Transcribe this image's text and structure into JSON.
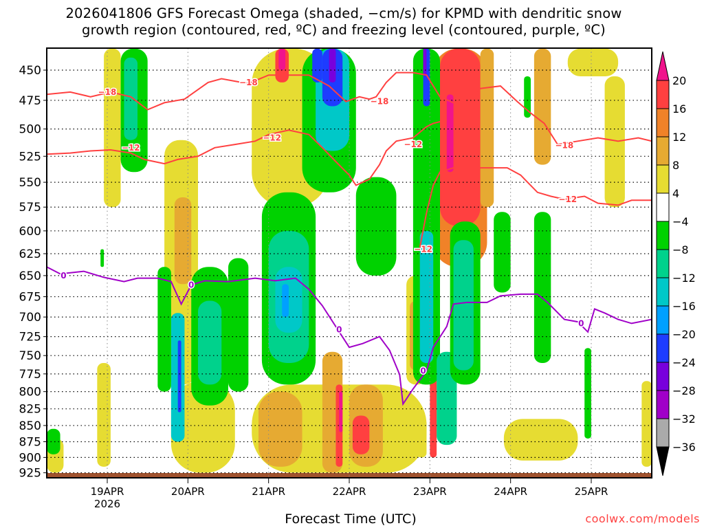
{
  "chart_data": {
    "type": "heatmap",
    "title_lines": [
      "2026041806 GFS Forecast Omega (shaded, −cm/s) for KPMD with dendritic snow",
      "growth region (contoured, red, ºC) and freezing level (contoured, purple, ºC)"
    ],
    "xlabel": "Forecast Time (UTC)",
    "credit": "coolwx.com/models",
    "x_range_hours": [
      0,
      180
    ],
    "y_range_hpa": [
      433,
      933
    ],
    "y_scale": "log-pressure (inverted)",
    "grid": true,
    "y_ticks": [
      450,
      475,
      500,
      525,
      550,
      575,
      600,
      625,
      650,
      675,
      700,
      725,
      750,
      775,
      800,
      825,
      850,
      875,
      900,
      925
    ],
    "x_ticks": [
      {
        "hour": 18,
        "label": "19APR",
        "sub": "2026"
      },
      {
        "hour": 42,
        "label": "20APR"
      },
      {
        "hour": 66,
        "label": "21APR"
      },
      {
        "hour": 90,
        "label": "22APR"
      },
      {
        "hour": 114,
        "label": "23APR"
      },
      {
        "hour": 138,
        "label": "24APR"
      },
      {
        "hour": 162,
        "label": "25APR"
      }
    ],
    "colorbar": {
      "levels": [
        "20",
        "16",
        "12",
        "8",
        "4",
        "−4",
        "−8",
        "−12",
        "−16",
        "−20",
        "−24",
        "−28",
        "−32",
        "−36"
      ],
      "over_color": "#f0148c",
      "under_color": "#000000",
      "bins": [
        {
          "min": 16,
          "max": 20,
          "color": "#ff4040"
        },
        {
          "min": 12,
          "max": 16,
          "color": "#f08228"
        },
        {
          "min": 8,
          "max": 12,
          "color": "#e6aa32"
        },
        {
          "min": 4,
          "max": 8,
          "color": "#e6dc32"
        },
        {
          "min": -4,
          "max": 4,
          "color": "#ffffff"
        },
        {
          "min": -8,
          "max": -4,
          "color": "#00d200"
        },
        {
          "min": -12,
          "max": -8,
          "color": "#00d28c"
        },
        {
          "min": -16,
          "max": -12,
          "color": "#00c8c8"
        },
        {
          "min": -20,
          "max": -16,
          "color": "#00a0ff"
        },
        {
          "min": -24,
          "max": -20,
          "color": "#1e3cff"
        },
        {
          "min": -28,
          "max": -24,
          "color": "#7800dc"
        },
        {
          "min": -32,
          "max": -28,
          "color": "#a000c8"
        },
        {
          "min": -36,
          "max": -32,
          "color": "#aaaaaa"
        }
      ]
    },
    "omega_regions": [
      [
        17,
        22,
        433,
        575,
        6
      ],
      [
        15,
        19,
        760,
        915,
        6
      ],
      [
        35,
        45,
        510,
        790,
        6
      ],
      [
        38,
        43,
        565,
        660,
        10
      ],
      [
        37,
        56,
        785,
        925,
        6
      ],
      [
        61,
        84,
        433,
        575,
        6
      ],
      [
        61,
        113,
        790,
        925,
        6
      ],
      [
        63,
        76,
        800,
        915,
        10
      ],
      [
        82,
        88,
        745,
        925,
        10
      ],
      [
        90,
        100,
        790,
        915,
        10
      ],
      [
        107,
        113,
        650,
        790,
        6
      ],
      [
        108,
        112,
        680,
        770,
        10
      ],
      [
        115,
        131,
        433,
        640,
        14
      ],
      [
        117,
        129,
        433,
        595,
        18
      ],
      [
        129,
        133,
        433,
        575,
        10
      ],
      [
        136,
        158,
        840,
        905,
        6
      ],
      [
        155,
        170,
        433,
        455,
        6
      ],
      [
        166,
        172,
        455,
        575,
        6
      ],
      [
        145,
        150,
        433,
        533,
        10
      ],
      [
        177,
        180,
        785,
        915,
        6
      ],
      [
        110,
        113,
        840,
        900,
        6
      ],
      [
        0,
        5,
        870,
        925,
        6
      ],
      [
        86,
        88,
        790,
        915,
        18
      ],
      [
        91,
        96,
        835,
        895,
        18
      ],
      [
        114,
        116,
        775,
        900,
        18
      ],
      [
        68,
        72,
        433,
        460,
        18
      ],
      [
        87,
        88,
        800,
        860,
        22
      ],
      [
        119,
        121,
        470,
        540,
        22
      ],
      [
        69,
        71,
        433,
        450,
        22
      ],
      [
        22,
        30,
        433,
        540,
        -6
      ],
      [
        23,
        27,
        440,
        510,
        -10
      ],
      [
        0,
        4,
        855,
        895,
        -6
      ],
      [
        16,
        17,
        620,
        640,
        -6
      ],
      [
        33,
        37,
        640,
        800,
        -6
      ],
      [
        37,
        41,
        695,
        875,
        -14
      ],
      [
        39,
        40,
        730,
        830,
        -22
      ],
      [
        43,
        54,
        640,
        820,
        -6
      ],
      [
        45,
        52,
        680,
        790,
        -10
      ],
      [
        54,
        60,
        630,
        800,
        -6
      ],
      [
        64,
        80,
        560,
        790,
        -6
      ],
      [
        66,
        78,
        600,
        760,
        -10
      ],
      [
        68,
        76,
        640,
        720,
        -14
      ],
      [
        70,
        72,
        660,
        700,
        -18
      ],
      [
        76,
        92,
        433,
        560,
        -6
      ],
      [
        80,
        90,
        433,
        520,
        -14
      ],
      [
        82,
        88,
        433,
        480,
        -22
      ],
      [
        84,
        86,
        433,
        460,
        -26
      ],
      [
        92,
        104,
        545,
        650,
        -6
      ],
      [
        79,
        82,
        433,
        460,
        -22
      ],
      [
        109,
        117,
        433,
        790,
        -6
      ],
      [
        111,
        115,
        600,
        760,
        -14
      ],
      [
        112,
        114,
        433,
        480,
        -22
      ],
      [
        112,
        113,
        433,
        455,
        -26
      ],
      [
        116,
        122,
        745,
        880,
        -10
      ],
      [
        120,
        129,
        590,
        790,
        -6
      ],
      [
        121,
        127,
        610,
        770,
        -10
      ],
      [
        133,
        138,
        580,
        670,
        -6
      ],
      [
        142,
        144,
        455,
        490,
        -6
      ],
      [
        145,
        150,
        580,
        760,
        -6
      ],
      [
        160,
        162,
        740,
        870,
        -6
      ]
    ],
    "contours": [
      {
        "name": "freezing-level-0C",
        "color": "#a000c8",
        "level": "0",
        "points": [
          [
            0,
            640
          ],
          [
            4,
            648
          ],
          [
            11,
            645
          ],
          [
            17,
            652
          ],
          [
            23,
            657
          ],
          [
            27,
            653
          ],
          [
            33,
            653
          ],
          [
            37,
            657
          ],
          [
            40,
            684
          ],
          [
            43,
            661
          ],
          [
            47,
            656
          ],
          [
            54,
            657
          ],
          [
            62,
            653
          ],
          [
            68,
            656
          ],
          [
            74,
            653
          ],
          [
            78,
            666
          ],
          [
            82,
            686
          ],
          [
            86,
            712
          ],
          [
            90,
            739
          ],
          [
            94,
            734
          ],
          [
            99,
            725
          ],
          [
            102,
            743
          ],
          [
            105,
            776
          ],
          [
            106,
            818
          ],
          [
            109,
            796
          ],
          [
            113,
            771
          ],
          [
            115,
            739
          ],
          [
            119,
            712
          ],
          [
            121,
            684
          ],
          [
            125,
            682
          ],
          [
            131,
            682
          ],
          [
            135,
            674
          ],
          [
            141,
            672
          ],
          [
            146,
            672
          ],
          [
            149,
            682
          ],
          [
            154,
            703
          ],
          [
            158,
            706
          ],
          [
            161,
            719
          ],
          [
            163,
            690
          ],
          [
            166,
            695
          ],
          [
            170,
            703
          ],
          [
            174,
            708
          ],
          [
            180,
            703
          ]
        ],
        "labels": [
          [
            5,
            650
          ],
          [
            43,
            661
          ],
          [
            87,
            716
          ],
          [
            112,
            771
          ],
          [
            159,
            708
          ]
        ]
      },
      {
        "name": "dgz-minus18C",
        "color": "#ff4040",
        "level": "−18",
        "points": [
          [
            0,
            470
          ],
          [
            7,
            468
          ],
          [
            13,
            472
          ],
          [
            19,
            468
          ],
          [
            25,
            472
          ],
          [
            30,
            483
          ],
          [
            35,
            477
          ],
          [
            41,
            474
          ],
          [
            48,
            460
          ],
          [
            52,
            457
          ],
          [
            56,
            459
          ],
          [
            60,
            461
          ],
          [
            66,
            454
          ],
          [
            72,
            454
          ],
          [
            78,
            454
          ],
          [
            84,
            463
          ],
          [
            89,
            476
          ],
          [
            93,
            472
          ],
          [
            96,
            474
          ],
          [
            98,
            472
          ],
          [
            101,
            460
          ],
          [
            104,
            452
          ],
          [
            109,
            452
          ],
          [
            113,
            454
          ],
          [
            117,
            472
          ],
          [
            121,
            477
          ],
          [
            125,
            474
          ],
          [
            129,
            465
          ],
          [
            135,
            463
          ],
          [
            140,
            476
          ],
          [
            144,
            486
          ],
          [
            148,
            495
          ],
          [
            152,
            514
          ],
          [
            158,
            511
          ],
          [
            164,
            508
          ],
          [
            170,
            511
          ],
          [
            176,
            508
          ],
          [
            180,
            511
          ]
        ],
        "labels": [
          [
            18,
            468
          ],
          [
            60,
            460
          ],
          [
            99,
            476
          ],
          [
            154,
            515
          ]
        ]
      },
      {
        "name": "dgz-minus12C-a",
        "color": "#ff4040",
        "level": "−12",
        "points": [
          [
            0,
            523
          ],
          [
            7,
            522
          ],
          [
            13,
            520
          ],
          [
            19,
            519
          ],
          [
            25,
            522
          ],
          [
            29,
            528
          ],
          [
            35,
            532
          ],
          [
            39,
            528
          ],
          [
            45,
            525
          ],
          [
            50,
            517
          ],
          [
            56,
            514
          ],
          [
            62,
            511
          ],
          [
            66,
            505
          ],
          [
            72,
            501
          ],
          [
            78,
            505
          ],
          [
            82,
            517
          ],
          [
            86,
            530
          ],
          [
            90,
            543
          ],
          [
            92,
            553
          ],
          [
            96,
            547
          ],
          [
            99,
            533
          ],
          [
            101,
            520
          ],
          [
            104,
            511
          ],
          [
            109,
            508
          ],
          [
            113,
            498
          ],
          [
            115,
            495
          ],
          [
            119,
            492
          ]
        ],
        "labels": [
          [
            25,
            517
          ],
          [
            67,
            508
          ],
          [
            109,
            514
          ]
        ]
      },
      {
        "name": "dgz-minus12C-b",
        "color": "#ff4040",
        "level": "−12",
        "points": [
          [
            111,
            618
          ],
          [
            113,
            581
          ],
          [
            115,
            553
          ],
          [
            117,
            540
          ],
          [
            121,
            536
          ],
          [
            129,
            536
          ],
          [
            137,
            536
          ],
          [
            141,
            543
          ],
          [
            146,
            560
          ],
          [
            150,
            564
          ],
          [
            154,
            567
          ],
          [
            160,
            564
          ],
          [
            164,
            571
          ],
          [
            170,
            573
          ],
          [
            174,
            568
          ],
          [
            180,
            568
          ]
        ],
        "labels": [
          [
            155,
            567
          ],
          [
            112,
            620
          ]
        ]
      }
    ],
    "terrain_color": "#a0522d"
  }
}
